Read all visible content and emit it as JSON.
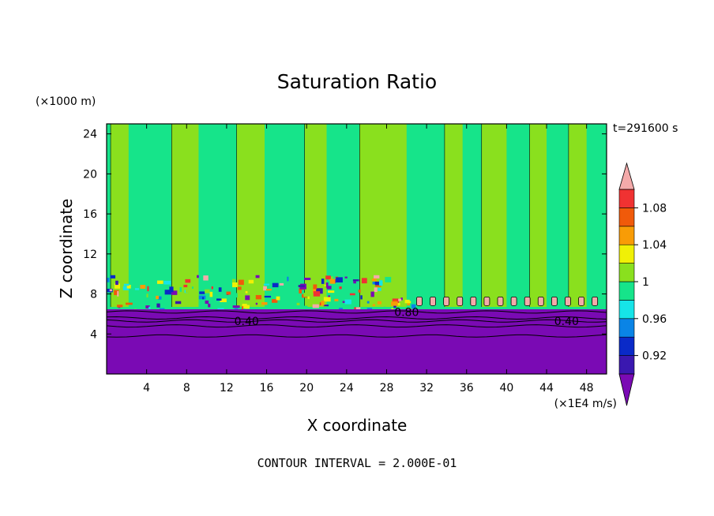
{
  "chart_data": {
    "type": "heatmap",
    "title": "Saturation Ratio",
    "xlabel": "X coordinate",
    "ylabel": "Z coordinate",
    "x_unit": "(×1E4 m/s)",
    "y_unit": "(×1000 m)",
    "time_label": "t=291600 s",
    "footer": "CONTOUR INTERVAL = 2.000E-01",
    "xlim": [
      0,
      50
    ],
    "ylim": [
      0,
      25
    ],
    "x_ticks": [
      "4",
      "8",
      "12",
      "16",
      "20",
      "24",
      "28",
      "32",
      "36",
      "40",
      "44",
      "48"
    ],
    "y_ticks": [
      "4",
      "8",
      "12",
      "16",
      "20",
      "24"
    ],
    "contour_labels": [
      "0.40",
      "0.80",
      "0.40"
    ],
    "colorbar": {
      "levels": [
        0.9,
        0.92,
        0.94,
        0.96,
        0.98,
        1.0,
        1.02,
        1.04,
        1.06,
        1.08,
        1.1
      ],
      "colors": [
        "#7a0ab4",
        "#3a18b0",
        "#0a2ac8",
        "#0a84e6",
        "#16e4e8",
        "#16e48a",
        "#8ae01e",
        "#f0f006",
        "#f89c06",
        "#f05a0a",
        "#f03232",
        "#f4aaaa"
      ],
      "labels": [
        "0.92",
        "0.96",
        "1",
        "1.04",
        "1.08"
      ]
    },
    "regions": {
      "below_contour_top_km": 6.2,
      "below_value": "< 0.90",
      "upper_band_values": [
        "0.98–1.00",
        "1.00–1.02"
      ]
    }
  }
}
